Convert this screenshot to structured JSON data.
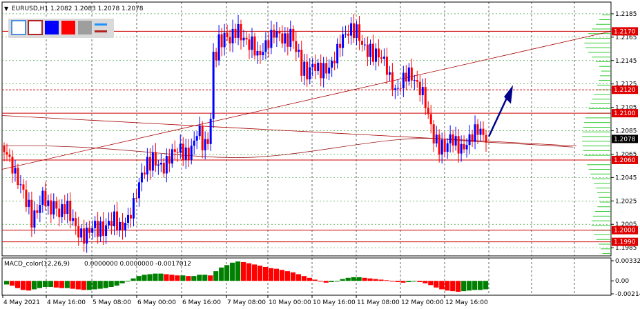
{
  "header": {
    "symbol_line": "EURUSD,H1  1.2082 1.2083 1.2078 1.2078",
    "menu_glyph": "▼"
  },
  "toolbar": {
    "buttons": [
      {
        "name": "frame-blue-button",
        "icon": "blue-outline-square",
        "color": "#4a90e2"
      },
      {
        "name": "frame-red-button",
        "icon": "red-outline-square",
        "color": "#b22222"
      },
      {
        "name": "blue-fill-button",
        "icon": "blue-filled-square",
        "color": "#0000ff"
      },
      {
        "name": "red-fill-button",
        "icon": "red-filled-square",
        "color": "#ff0000"
      },
      {
        "name": "gray-fill-button",
        "icon": "gray-filled-square",
        "color": "#9e9e9e"
      },
      {
        "name": "line-style-button",
        "icon": "two-lines-icon",
        "color": "#1e90ff"
      }
    ]
  },
  "colors": {
    "bull": "#0000ff",
    "bear": "#ff0000",
    "level_line": "#cc0000",
    "trend_line": "#aa0000",
    "ma_line": "#9b1b1b",
    "grid": "#000000",
    "profile": "#33cc33",
    "macd_pos": "#008000",
    "macd_neg": "#ff0000",
    "arrow": "#00008b"
  },
  "chart_data": {
    "type": "candlestick",
    "symbol": "EURUSD",
    "timeframe": "H1",
    "ohlc_header": {
      "open": 1.2082,
      "high": 1.2083,
      "low": 1.2078,
      "close": 1.2078
    },
    "y_range": [
      1.1978,
      1.2195
    ],
    "y_ticks": [
      1.2185,
      1.2165,
      1.2145,
      1.2125,
      1.2105,
      1.2085,
      1.2065,
      1.2045,
      1.2025,
      1.2005,
      1.1985
    ],
    "x_labels": [
      "4 May 2021",
      "4 May 16:00",
      "5 May 08:00",
      "6 May 00:00",
      "6 May 16:00",
      "7 May 08:00",
      "10 May 00:00",
      "10 May 16:00",
      "11 May 08:00",
      "12 May 00:00",
      "12 May 16:00"
    ],
    "price_levels": [
      {
        "label": "1.2170",
        "value": 1.217
      },
      {
        "label": "1.2120",
        "value": 1.212
      },
      {
        "label": "1.2100",
        "value": 1.21
      },
      {
        "label": "1.2060",
        "value": 1.206
      },
      {
        "label": "1.2000",
        "value": 1.2
      },
      {
        "label": "1.1990",
        "value": 1.199
      }
    ],
    "current_price": {
      "label": "1.2078",
      "value": 1.2078
    },
    "close_path": [
      1.2068,
      1.2058,
      1.2048,
      1.204,
      1.2028,
      1.2008,
      1.2014,
      1.203,
      1.2018,
      1.2024,
      1.2015,
      1.2022,
      1.2012,
      1.2,
      1.1994,
      1.1998,
      1.2006,
      1.2002,
      1.1998,
      1.2004,
      1.201,
      1.2002,
      1.2008,
      1.2015,
      1.203,
      1.2046,
      1.2055,
      1.2062,
      1.2058,
      1.2054,
      1.2062,
      1.2066,
      1.2068,
      1.2064,
      1.207,
      1.2088,
      1.2076,
      1.2064,
      1.2145,
      1.216,
      1.2168,
      1.2164,
      1.2172,
      1.2165,
      1.2158,
      1.216,
      1.215,
      1.2156,
      1.2162,
      1.2168,
      1.2165,
      1.216,
      1.217,
      1.2158,
      1.214,
      1.2132,
      1.214,
      1.2136,
      1.2138,
      1.214,
      1.2148,
      1.216,
      1.2166,
      1.217,
      1.2172,
      1.216,
      1.2155,
      1.215,
      1.2148,
      1.2144,
      1.213,
      1.212,
      1.2126,
      1.2134,
      1.213,
      1.2122,
      1.2118,
      1.21,
      1.208,
      1.2072,
      1.2068,
      1.2078,
      1.2074,
      1.207,
      1.2076,
      1.2082,
      1.2086,
      1.2078
    ],
    "macd": {
      "name": "MACD_color(12,26,9)",
      "values_text": "0.0000000 0.0000000 -0.0017012",
      "y_ticks": [
        0.003321,
        0.0,
        -0.00214
      ],
      "y_tick_labels": [
        "0.003321",
        "0.00",
        "-0.00214"
      ],
      "histogram": [
        -0.0006,
        -0.0008,
        -0.0012,
        -0.0015,
        -0.0016,
        -0.0014,
        -0.0012,
        -0.001,
        -0.001,
        -0.0011,
        -0.0012,
        -0.0012,
        -0.0013,
        -0.0014,
        -0.0015,
        -0.0015,
        -0.0014,
        -0.0013,
        -0.0012,
        -0.001,
        -0.0008,
        -0.0004,
        0.0,
        0.0004,
        0.0008,
        0.001,
        0.0011,
        0.0012,
        0.0012,
        0.0011,
        0.001,
        0.0009,
        0.0009,
        0.0008,
        0.0008,
        0.001,
        0.001,
        0.0009,
        0.0016,
        0.0022,
        0.0026,
        0.003,
        0.0032,
        0.0031,
        0.0029,
        0.0027,
        0.0025,
        0.0023,
        0.0021,
        0.002,
        0.0018,
        0.0016,
        0.0014,
        0.0011,
        0.0008,
        0.0005,
        0.0002,
        -0.0001,
        -0.0003,
        -0.0002,
        0.0,
        0.0003,
        0.0005,
        0.0006,
        0.0006,
        0.0005,
        0.0004,
        0.0003,
        0.0002,
        0.0001,
        0.0,
        -0.0002,
        -0.0003,
        -0.0002,
        -0.0001,
        -0.0002,
        -0.0004,
        -0.0007,
        -0.0011,
        -0.0014,
        -0.0016,
        -0.0017,
        -0.0018,
        -0.0017,
        -0.0016,
        -0.0015,
        -0.0015,
        -0.0014
      ]
    },
    "annotations": [
      "upward arrow (projection)",
      "rising trend line",
      "falling trend line",
      "moving average",
      "volume profile"
    ]
  }
}
